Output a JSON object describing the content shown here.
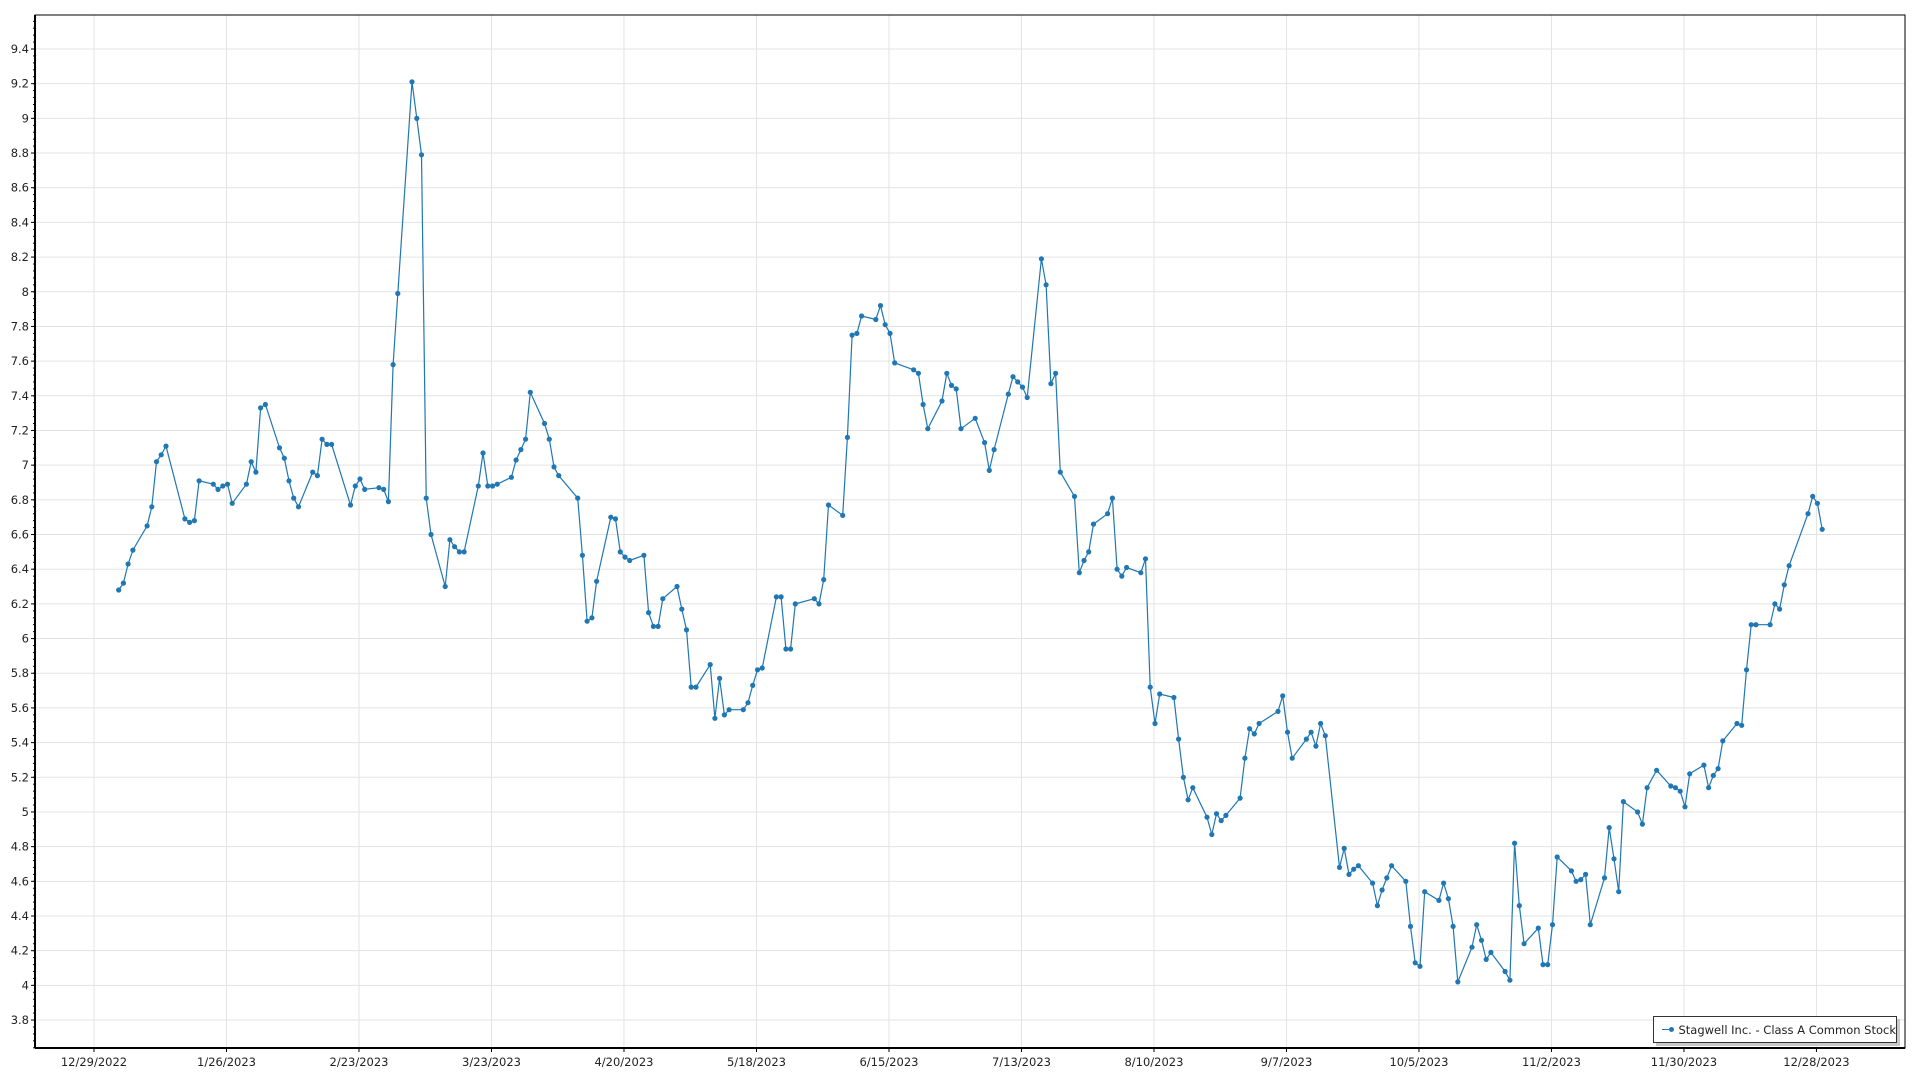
{
  "chart_data": {
    "type": "line",
    "title": "",
    "xlabel": "",
    "ylabel": "",
    "ylim": [
      3.64,
      9.6
    ],
    "xlim": [
      "12/16/2022",
      "1/17/2024"
    ],
    "grid": true,
    "legend_position": "bottom-right",
    "line_color": "#1f77b4",
    "grid_color": "#e3e3e3",
    "yticks": [
      "9.4",
      "9.2",
      "9",
      "8.8",
      "8.6",
      "8.4",
      "8.2",
      "8",
      "7.8",
      "7.6",
      "7.4",
      "7.2",
      "7",
      "6.8",
      "6.6",
      "6.4",
      "6.2",
      "6",
      "5.8",
      "5.6",
      "5.4",
      "5.2",
      "5",
      "4.8",
      "4.6",
      "4.4",
      "4.2",
      "4",
      "3.8"
    ],
    "xticks": [
      "12/29/2022",
      "1/26/2023",
      "2/23/2023",
      "3/23/2023",
      "4/20/2023",
      "5/18/2023",
      "6/15/2023",
      "7/13/2023",
      "8/10/2023",
      "9/7/2023",
      "10/5/2023",
      "11/2/2023",
      "11/30/2023",
      "12/28/2023"
    ],
    "series": [
      {
        "name": "Stagwell Inc. - Class A Common Stock",
        "points": [
          [
            "1/3/2023",
            6.28
          ],
          [
            "1/4/2023",
            6.32
          ],
          [
            "1/5/2023",
            6.43
          ],
          [
            "1/6/2023",
            6.51
          ],
          [
            "1/9/2023",
            6.65
          ],
          [
            "1/10/2023",
            6.76
          ],
          [
            "1/11/2023",
            7.02
          ],
          [
            "1/12/2023",
            7.06
          ],
          [
            "1/13/2023",
            7.11
          ],
          [
            "1/17/2023",
            6.69
          ],
          [
            "1/18/2023",
            6.67
          ],
          [
            "1/19/2023",
            6.68
          ],
          [
            "1/20/2023",
            6.91
          ],
          [
            "1/23/2023",
            6.89
          ],
          [
            "1/24/2023",
            6.86
          ],
          [
            "1/25/2023",
            6.88
          ],
          [
            "1/26/2023",
            6.89
          ],
          [
            "1/27/2023",
            6.78
          ],
          [
            "1/30/2023",
            6.89
          ],
          [
            "1/31/2023",
            7.02
          ],
          [
            "2/1/2023",
            6.96
          ],
          [
            "2/2/2023",
            7.33
          ],
          [
            "2/3/2023",
            7.35
          ],
          [
            "2/6/2023",
            7.1
          ],
          [
            "2/7/2023",
            7.04
          ],
          [
            "2/8/2023",
            6.91
          ],
          [
            "2/9/2023",
            6.81
          ],
          [
            "2/10/2023",
            6.76
          ],
          [
            "2/13/2023",
            6.96
          ],
          [
            "2/14/2023",
            6.94
          ],
          [
            "2/15/2023",
            7.15
          ],
          [
            "2/16/2023",
            7.12
          ],
          [
            "2/17/2023",
            7.12
          ],
          [
            "2/21/2023",
            6.77
          ],
          [
            "2/22/2023",
            6.88
          ],
          [
            "2/23/2023",
            6.92
          ],
          [
            "2/24/2023",
            6.86
          ],
          [
            "2/27/2023",
            6.87
          ],
          [
            "2/28/2023",
            6.86
          ],
          [
            "3/1/2023",
            6.79
          ],
          [
            "3/2/2023",
            7.58
          ],
          [
            "3/3/2023",
            7.99
          ],
          [
            "3/6/2023",
            9.21
          ],
          [
            "3/7/2023",
            9.0
          ],
          [
            "3/8/2023",
            8.79
          ],
          [
            "3/9/2023",
            6.81
          ],
          [
            "3/10/2023",
            6.6
          ],
          [
            "3/13/2023",
            6.3
          ],
          [
            "3/14/2023",
            6.57
          ],
          [
            "3/15/2023",
            6.53
          ],
          [
            "3/16/2023",
            6.5
          ],
          [
            "3/17/2023",
            6.5
          ],
          [
            "3/20/2023",
            6.88
          ],
          [
            "3/21/2023",
            7.07
          ],
          [
            "3/22/2023",
            6.88
          ],
          [
            "3/23/2023",
            6.88
          ],
          [
            "3/24/2023",
            6.89
          ],
          [
            "3/27/2023",
            6.93
          ],
          [
            "3/28/2023",
            7.03
          ],
          [
            "3/29/2023",
            7.09
          ],
          [
            "3/30/2023",
            7.15
          ],
          [
            "3/31/2023",
            7.42
          ],
          [
            "4/3/2023",
            7.24
          ],
          [
            "4/4/2023",
            7.15
          ],
          [
            "4/5/2023",
            6.99
          ],
          [
            "4/6/2023",
            6.94
          ],
          [
            "4/10/2023",
            6.81
          ],
          [
            "4/11/2023",
            6.48
          ],
          [
            "4/12/2023",
            6.1
          ],
          [
            "4/13/2023",
            6.12
          ],
          [
            "4/14/2023",
            6.33
          ],
          [
            "4/17/2023",
            6.7
          ],
          [
            "4/18/2023",
            6.69
          ],
          [
            "4/19/2023",
            6.5
          ],
          [
            "4/20/2023",
            6.47
          ],
          [
            "4/21/2023",
            6.45
          ],
          [
            "4/24/2023",
            6.48
          ],
          [
            "4/25/2023",
            6.15
          ],
          [
            "4/26/2023",
            6.07
          ],
          [
            "4/27/2023",
            6.07
          ],
          [
            "4/28/2023",
            6.23
          ],
          [
            "5/1/2023",
            6.3
          ],
          [
            "5/2/2023",
            6.17
          ],
          [
            "5/3/2023",
            6.05
          ],
          [
            "5/4/2023",
            5.72
          ],
          [
            "5/5/2023",
            5.72
          ],
          [
            "5/8/2023",
            5.85
          ],
          [
            "5/9/2023",
            5.54
          ],
          [
            "5/10/2023",
            5.77
          ],
          [
            "5/11/2023",
            5.56
          ],
          [
            "5/12/2023",
            5.59
          ],
          [
            "5/15/2023",
            5.59
          ],
          [
            "5/16/2023",
            5.63
          ],
          [
            "5/17/2023",
            5.73
          ],
          [
            "5/18/2023",
            5.82
          ],
          [
            "5/19/2023",
            5.83
          ],
          [
            "5/22/2023",
            6.24
          ],
          [
            "5/23/2023",
            6.24
          ],
          [
            "5/24/2023",
            5.94
          ],
          [
            "5/25/2023",
            5.94
          ],
          [
            "5/26/2023",
            6.2
          ],
          [
            "5/30/2023",
            6.23
          ],
          [
            "5/31/2023",
            6.2
          ],
          [
            "6/1/2023",
            6.34
          ],
          [
            "6/2/2023",
            6.77
          ],
          [
            "6/5/2023",
            6.71
          ],
          [
            "6/6/2023",
            7.16
          ],
          [
            "6/7/2023",
            7.75
          ],
          [
            "6/8/2023",
            7.76
          ],
          [
            "6/9/2023",
            7.86
          ],
          [
            "6/12/2023",
            7.84
          ],
          [
            "6/13/2023",
            7.92
          ],
          [
            "6/14/2023",
            7.81
          ],
          [
            "6/15/2023",
            7.76
          ],
          [
            "6/16/2023",
            7.59
          ],
          [
            "6/20/2023",
            7.55
          ],
          [
            "6/21/2023",
            7.53
          ],
          [
            "6/22/2023",
            7.35
          ],
          [
            "6/23/2023",
            7.21
          ],
          [
            "6/26/2023",
            7.37
          ],
          [
            "6/27/2023",
            7.53
          ],
          [
            "6/28/2023",
            7.46
          ],
          [
            "6/29/2023",
            7.44
          ],
          [
            "6/30/2023",
            7.21
          ],
          [
            "7/3/2023",
            7.27
          ],
          [
            "7/5/2023",
            7.13
          ],
          [
            "7/6/2023",
            6.97
          ],
          [
            "7/7/2023",
            7.09
          ],
          [
            "7/10/2023",
            7.41
          ],
          [
            "7/11/2023",
            7.51
          ],
          [
            "7/12/2023",
            7.48
          ],
          [
            "7/13/2023",
            7.45
          ],
          [
            "7/14/2023",
            7.39
          ],
          [
            "7/17/2023",
            8.19
          ],
          [
            "7/18/2023",
            8.04
          ],
          [
            "7/19/2023",
            7.47
          ],
          [
            "7/20/2023",
            7.53
          ],
          [
            "7/21/2023",
            6.96
          ],
          [
            "7/24/2023",
            6.82
          ],
          [
            "7/25/2023",
            6.38
          ],
          [
            "7/26/2023",
            6.45
          ],
          [
            "7/27/2023",
            6.5
          ],
          [
            "7/28/2023",
            6.66
          ],
          [
            "7/31/2023",
            6.72
          ],
          [
            "8/1/2023",
            6.81
          ],
          [
            "8/2/2023",
            6.4
          ],
          [
            "8/3/2023",
            6.36
          ],
          [
            "8/4/2023",
            6.41
          ],
          [
            "8/7/2023",
            6.38
          ],
          [
            "8/8/2023",
            6.46
          ],
          [
            "8/9/2023",
            5.72
          ],
          [
            "8/10/2023",
            5.51
          ],
          [
            "8/11/2023",
            5.68
          ],
          [
            "8/14/2023",
            5.66
          ],
          [
            "8/15/2023",
            5.42
          ],
          [
            "8/16/2023",
            5.2
          ],
          [
            "8/17/2023",
            5.07
          ],
          [
            "8/18/2023",
            5.14
          ],
          [
            "8/21/2023",
            4.97
          ],
          [
            "8/22/2023",
            4.87
          ],
          [
            "8/23/2023",
            4.99
          ],
          [
            "8/24/2023",
            4.95
          ],
          [
            "8/25/2023",
            4.98
          ],
          [
            "8/28/2023",
            5.08
          ],
          [
            "8/29/2023",
            5.31
          ],
          [
            "8/30/2023",
            5.48
          ],
          [
            "8/31/2023",
            5.45
          ],
          [
            "9/1/2023",
            5.51
          ],
          [
            "9/5/2023",
            5.58
          ],
          [
            "9/6/2023",
            5.67
          ],
          [
            "9/7/2023",
            5.46
          ],
          [
            "9/8/2023",
            5.31
          ],
          [
            "9/11/2023",
            5.42
          ],
          [
            "9/12/2023",
            5.46
          ],
          [
            "9/13/2023",
            5.38
          ],
          [
            "9/14/2023",
            5.51
          ],
          [
            "9/15/2023",
            5.44
          ],
          [
            "9/18/2023",
            4.68
          ],
          [
            "9/19/2023",
            4.79
          ],
          [
            "9/20/2023",
            4.64
          ],
          [
            "9/21/2023",
            4.67
          ],
          [
            "9/22/2023",
            4.69
          ],
          [
            "9/25/2023",
            4.59
          ],
          [
            "9/26/2023",
            4.46
          ],
          [
            "9/27/2023",
            4.55
          ],
          [
            "9/28/2023",
            4.62
          ],
          [
            "9/29/2023",
            4.69
          ],
          [
            "10/2/2023",
            4.6
          ],
          [
            "10/3/2023",
            4.34
          ],
          [
            "10/4/2023",
            4.13
          ],
          [
            "10/5/2023",
            4.11
          ],
          [
            "10/6/2023",
            4.54
          ],
          [
            "10/9/2023",
            4.49
          ],
          [
            "10/10/2023",
            4.59
          ],
          [
            "10/11/2023",
            4.5
          ],
          [
            "10/12/2023",
            4.34
          ],
          [
            "10/13/2023",
            4.02
          ],
          [
            "10/16/2023",
            4.22
          ],
          [
            "10/17/2023",
            4.35
          ],
          [
            "10/18/2023",
            4.26
          ],
          [
            "10/19/2023",
            4.15
          ],
          [
            "10/20/2023",
            4.19
          ],
          [
            "10/23/2023",
            4.08
          ],
          [
            "10/24/2023",
            4.03
          ],
          [
            "10/25/2023",
            4.82
          ],
          [
            "10/26/2023",
            4.46
          ],
          [
            "10/27/2023",
            4.24
          ],
          [
            "10/30/2023",
            4.33
          ],
          [
            "10/31/2023",
            4.12
          ],
          [
            "11/1/2023",
            4.12
          ],
          [
            "11/2/2023",
            4.35
          ],
          [
            "11/3/2023",
            4.74
          ],
          [
            "11/6/2023",
            4.66
          ],
          [
            "11/7/2023",
            4.6
          ],
          [
            "11/8/2023",
            4.61
          ],
          [
            "11/9/2023",
            4.64
          ],
          [
            "11/10/2023",
            4.35
          ],
          [
            "11/13/2023",
            4.62
          ],
          [
            "11/14/2023",
            4.91
          ],
          [
            "11/15/2023",
            4.73
          ],
          [
            "11/16/2023",
            4.54
          ],
          [
            "11/17/2023",
            5.06
          ],
          [
            "11/20/2023",
            5.0
          ],
          [
            "11/21/2023",
            4.93
          ],
          [
            "11/22/2023",
            5.14
          ],
          [
            "11/24/2023",
            5.24
          ],
          [
            "11/27/2023",
            5.15
          ],
          [
            "11/28/2023",
            5.14
          ],
          [
            "11/29/2023",
            5.12
          ],
          [
            "11/30/2023",
            5.03
          ],
          [
            "12/1/2023",
            5.22
          ],
          [
            "12/4/2023",
            5.27
          ],
          [
            "12/5/2023",
            5.14
          ],
          [
            "12/6/2023",
            5.21
          ],
          [
            "12/7/2023",
            5.25
          ],
          [
            "12/8/2023",
            5.41
          ],
          [
            "12/11/2023",
            5.51
          ],
          [
            "12/12/2023",
            5.5
          ],
          [
            "12/13/2023",
            5.82
          ],
          [
            "12/14/2023",
            6.08
          ],
          [
            "12/15/2023",
            6.08
          ],
          [
            "12/18/2023",
            6.08
          ],
          [
            "12/19/2023",
            6.2
          ],
          [
            "12/20/2023",
            6.17
          ],
          [
            "12/21/2023",
            6.31
          ],
          [
            "12/22/2023",
            6.42
          ],
          [
            "12/26/2023",
            6.72
          ],
          [
            "12/27/2023",
            6.82
          ],
          [
            "12/28/2023",
            6.78
          ],
          [
            "12/29/2023",
            6.63
          ]
        ]
      }
    ]
  }
}
